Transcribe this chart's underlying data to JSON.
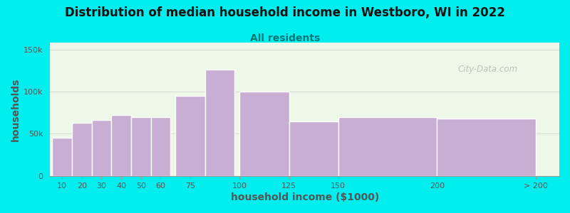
{
  "title": "Distribution of median household income in Westboro, WI in 2022",
  "subtitle": "All residents",
  "xlabel": "household income ($1000)",
  "ylabel": "households",
  "background_color": "#00EEEE",
  "plot_bg_color": "#eef8e8",
  "bar_color": "#c9aed4",
  "bar_edge_color": "#ffffff",
  "bar_positions": [
    10,
    20,
    30,
    40,
    50,
    60,
    75,
    90,
    112.5,
    137.5,
    175,
    225
  ],
  "bar_widths": [
    10,
    10,
    10,
    10,
    10,
    10,
    15,
    15,
    25,
    25,
    50,
    50
  ],
  "bar_heights": [
    45000,
    63000,
    66000,
    72000,
    70000,
    70000,
    95000,
    126000,
    100000,
    65000,
    70000,
    68000
  ],
  "xtick_labels": [
    "10",
    "20",
    "30",
    "40",
    "50",
    "60",
    "75",
    "100",
    "125",
    "150",
    "200",
    "> 200"
  ],
  "xtick_positions": [
    10,
    20,
    30,
    40,
    50,
    60,
    75,
    100,
    125,
    150,
    200,
    250
  ],
  "ytick_values": [
    0,
    50000,
    100000,
    150000
  ],
  "ytick_labels": [
    "0",
    "50k",
    "100k",
    "150k"
  ],
  "ylim": [
    0,
    158000
  ],
  "xlim": [
    4,
    262
  ],
  "watermark_text": "City-Data.com",
  "title_fontsize": 12,
  "subtitle_fontsize": 10,
  "axis_label_fontsize": 10,
  "tick_fontsize": 8,
  "title_color": "#111111",
  "subtitle_color": "#007777",
  "axis_label_color": "#555555",
  "tick_color": "#555555"
}
